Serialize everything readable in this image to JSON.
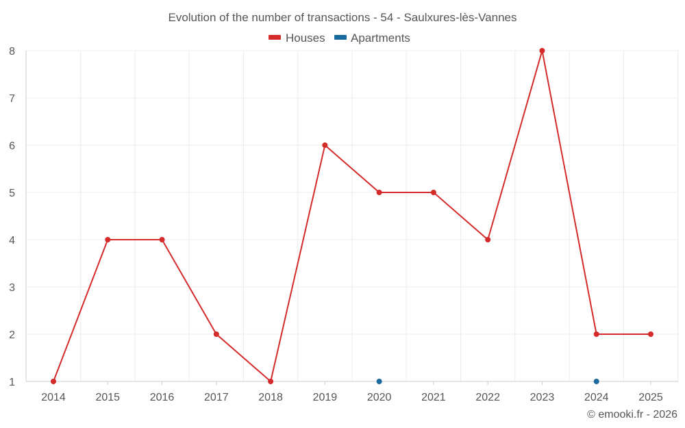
{
  "chart_data": {
    "type": "line",
    "title": "Evolution of the number of transactions - 54 - Saulxures-lès-Vannes",
    "xlabel": "",
    "ylabel": "",
    "categories": [
      "2014",
      "2015",
      "2016",
      "2017",
      "2018",
      "2019",
      "2020",
      "2021",
      "2022",
      "2023",
      "2024",
      "2025"
    ],
    "yticks": [
      "1",
      "2",
      "3",
      "4",
      "5",
      "6",
      "7",
      "8"
    ],
    "ylim": [
      1,
      8
    ],
    "grid": true,
    "legend_position": "top-center",
    "series": [
      {
        "name": "Houses",
        "color": "#d42a2a",
        "values": [
          1,
          4,
          4,
          2,
          1,
          6,
          5,
          5,
          4,
          8,
          2,
          2
        ]
      },
      {
        "name": "Apartments",
        "color": "#1a6aa0",
        "values": [
          null,
          null,
          null,
          null,
          null,
          null,
          1,
          null,
          null,
          null,
          1,
          null
        ]
      }
    ]
  },
  "footer": {
    "copyright": "© emooki.fr - 2026"
  }
}
